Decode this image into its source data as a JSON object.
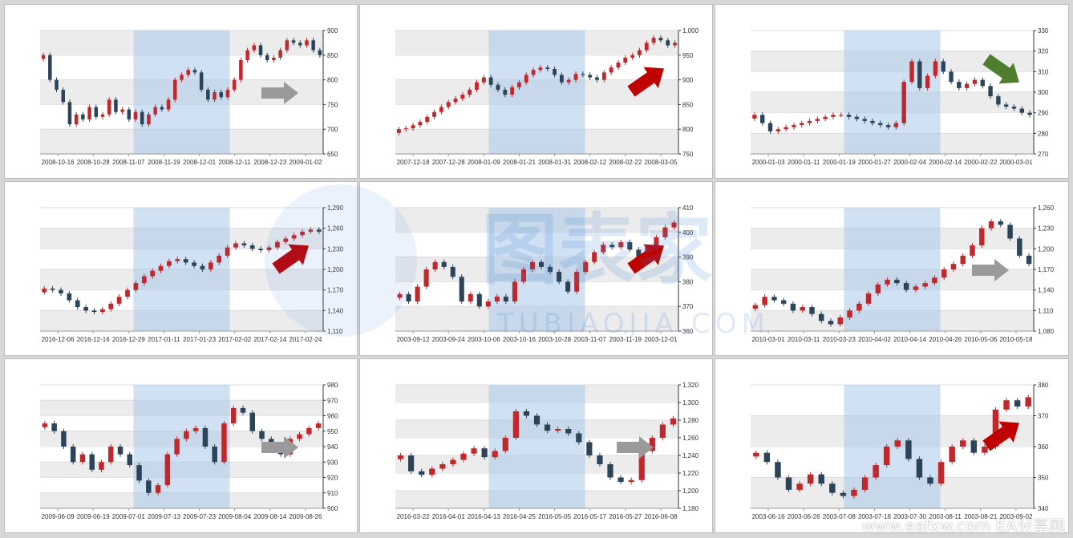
{
  "colors": {
    "up": "#c0282c",
    "down": "#2c4459",
    "highlight": "#a8c8e8",
    "band": "#ececec",
    "arrow_gray": "#9a9a9a",
    "arrow_red": "#c00000",
    "arrow_green": "#4e7d2e"
  },
  "watermark": {
    "cn": "图表家",
    "en": "TUBIAOJIA.COM"
  },
  "footer": "www.eafxw.com  EA分享网",
  "chart_data": [
    {
      "type": "candlestick",
      "arrow": "right",
      "arrow_color": "arrow_gray",
      "highlight": [
        0.33,
        0.67
      ],
      "ylim": [
        650,
        900
      ],
      "yticks": [
        "650",
        "700",
        "750",
        "800",
        "850",
        "900"
      ],
      "xticks": [
        "2008-10-16",
        "2008-10-28",
        "2008-11-07",
        "2008-11-19",
        "2008-12-01",
        "2008-12-11",
        "2008-12-23",
        "2009-01-02"
      ],
      "close": [
        850,
        800,
        780,
        755,
        710,
        730,
        720,
        745,
        725,
        730,
        760,
        735,
        740,
        720,
        735,
        710,
        730,
        745,
        740,
        760,
        800,
        810,
        820,
        815,
        780,
        760,
        775,
        765,
        780,
        800,
        840,
        860,
        870,
        850,
        840,
        845,
        860,
        880,
        875,
        870,
        880,
        860,
        850
      ]
    },
    {
      "type": "candlestick",
      "arrow": "up-right",
      "arrow_color": "arrow_red",
      "highlight": [
        0.33,
        0.67
      ],
      "ylim": [
        750,
        1000
      ],
      "yticks": [
        "750",
        "800",
        "850",
        "900",
        "950",
        "1,000"
      ],
      "xticks": [
        "2007-12-18",
        "2007-12-28",
        "2008-01-09",
        "2008-01-21",
        "2008-01-31",
        "2008-02-12",
        "2008-02-22",
        "2008-03-05"
      ],
      "close": [
        800,
        802,
        808,
        815,
        825,
        835,
        845,
        855,
        862,
        870,
        880,
        895,
        905,
        890,
        880,
        870,
        885,
        895,
        910,
        920,
        925,
        922,
        910,
        895,
        900,
        912,
        910,
        905,
        900,
        915,
        925,
        935,
        945,
        950,
        960,
        975,
        985,
        980,
        970,
        975
      ]
    },
    {
      "type": "candlestick",
      "arrow": "down-right",
      "arrow_color": "arrow_green",
      "highlight": [
        0.33,
        0.67
      ],
      "ylim": [
        270,
        330
      ],
      "yticks": [
        "270",
        "280",
        "290",
        "300",
        "310",
        "320",
        "330"
      ],
      "xticks": [
        "2000-01-03",
        "2000-01-11",
        "2000-01-19",
        "2000-01-27",
        "2000-02-04",
        "2000-02-14",
        "2000-02-22",
        "2000-03-01"
      ],
      "close": [
        289,
        285,
        281,
        282,
        283,
        284,
        285,
        286,
        287,
        288,
        289,
        289,
        288,
        287,
        286,
        285,
        284,
        283,
        285,
        305,
        315,
        302,
        308,
        315,
        310,
        305,
        302,
        304,
        306,
        303,
        298,
        294,
        293,
        292,
        290,
        289
      ]
    },
    {
      "type": "candlestick",
      "arrow": "up-right",
      "arrow_color": "arrow_red",
      "highlight": [
        0.33,
        0.67
      ],
      "ylim": [
        1110,
        1290
      ],
      "yticks": [
        "1,110",
        "1,140",
        "1,170",
        "1,200",
        "1,230",
        "1,260",
        "1,290"
      ],
      "xticks": [
        "2016-12-06",
        "2016-12-16",
        "2016-12-29",
        "2017-01-11",
        "2017-01-23",
        "2017-02-02",
        "2017-02-14",
        "2017-02-24"
      ],
      "close": [
        1172,
        1170,
        1165,
        1155,
        1145,
        1140,
        1138,
        1142,
        1150,
        1160,
        1170,
        1180,
        1190,
        1198,
        1205,
        1212,
        1215,
        1210,
        1205,
        1200,
        1210,
        1220,
        1232,
        1238,
        1235,
        1230,
        1228,
        1232,
        1240,
        1245,
        1250,
        1255,
        1258,
        1255
      ]
    },
    {
      "type": "candlestick",
      "arrow": "up-right",
      "arrow_color": "arrow_red",
      "highlight": [
        0.33,
        0.67
      ],
      "ylim": [
        360,
        410
      ],
      "yticks": [
        "360",
        "370",
        "380",
        "390",
        "400",
        "410"
      ],
      "xticks": [
        "2003-09-12",
        "2003-09-24",
        "2003-10-06",
        "2003-10-16",
        "2003-10-28",
        "2003-11-07",
        "2003-11-19",
        "2003-12-01"
      ],
      "close": [
        375,
        372,
        378,
        385,
        388,
        386,
        382,
        372,
        375,
        370,
        372,
        374,
        372,
        380,
        385,
        388,
        386,
        384,
        380,
        376,
        384,
        388,
        392,
        395,
        394,
        396,
        393,
        390,
        394,
        398,
        402,
        404
      ]
    },
    {
      "type": "candlestick",
      "arrow": "right",
      "arrow_color": "arrow_gray",
      "highlight": [
        0.33,
        0.67
      ],
      "ylim": [
        1080,
        1260
      ],
      "yticks": [
        "1,080",
        "1,110",
        "1,140",
        "1,170",
        "1,200",
        "1,230",
        "1,260"
      ],
      "xticks": [
        "2010-03-01",
        "2010-03-11",
        "2010-03-23",
        "2010-04-02",
        "2010-04-14",
        "2010-04-26",
        "2010-05-06",
        "2010-05-18"
      ],
      "close": [
        1118,
        1130,
        1125,
        1120,
        1110,
        1115,
        1105,
        1095,
        1090,
        1100,
        1110,
        1120,
        1135,
        1148,
        1155,
        1150,
        1140,
        1145,
        1150,
        1158,
        1170,
        1178,
        1190,
        1205,
        1230,
        1240,
        1235,
        1215,
        1190,
        1178
      ]
    },
    {
      "type": "candlestick",
      "arrow": "right",
      "arrow_color": "arrow_gray",
      "highlight": [
        0.33,
        0.67
      ],
      "ylim": [
        900,
        980
      ],
      "yticks": [
        "900",
        "910",
        "920",
        "930",
        "940",
        "950",
        "960",
        "970",
        "980"
      ],
      "xticks": [
        "2009-06-09",
        "2009-06-19",
        "2009-07-01",
        "2009-07-13",
        "2009-07-23",
        "2009-08-04",
        "2009-08-14",
        "2009-08-26"
      ],
      "close": [
        955,
        950,
        940,
        930,
        935,
        925,
        930,
        940,
        935,
        928,
        918,
        910,
        915,
        935,
        945,
        950,
        952,
        940,
        930,
        955,
        965,
        962,
        950,
        945,
        940,
        935,
        945,
        948,
        952,
        955
      ]
    },
    {
      "type": "candlestick",
      "arrow": "right",
      "arrow_color": "arrow_gray",
      "highlight": [
        0.33,
        0.67
      ],
      "ylim": [
        1180,
        1320
      ],
      "yticks": [
        "1,180",
        "1,200",
        "1,220",
        "1,240",
        "1,260",
        "1,280",
        "1,300",
        "1,320"
      ],
      "xticks": [
        "2016-03-22",
        "2016-04-01",
        "2016-04-13",
        "2016-04-25",
        "2016-05-05",
        "2016-05-17",
        "2016-05-27",
        "2016-06-08"
      ],
      "close": [
        1240,
        1222,
        1218,
        1225,
        1230,
        1235,
        1242,
        1248,
        1238,
        1245,
        1260,
        1290,
        1285,
        1275,
        1268,
        1270,
        1265,
        1255,
        1240,
        1230,
        1215,
        1210,
        1212,
        1245,
        1260,
        1275,
        1282
      ]
    },
    {
      "type": "candlestick",
      "arrow": "up-right",
      "arrow_color": "arrow_red",
      "highlight": [
        0.33,
        0.67
      ],
      "ylim": [
        340,
        380
      ],
      "yticks": [
        "340",
        "350",
        "360",
        "370",
        "380"
      ],
      "xticks": [
        "2003-06-16",
        "2003-06-26",
        "2003-07-08",
        "2003-07-18",
        "2003-07-30",
        "2003-08-11",
        "2003-08-21",
        "2003-09-02"
      ],
      "close": [
        358,
        355,
        350,
        346,
        348,
        351,
        348,
        345,
        344,
        346,
        350,
        354,
        360,
        362,
        356,
        350,
        348,
        355,
        360,
        362,
        358,
        360,
        372,
        375,
        373,
        376
      ]
    }
  ]
}
